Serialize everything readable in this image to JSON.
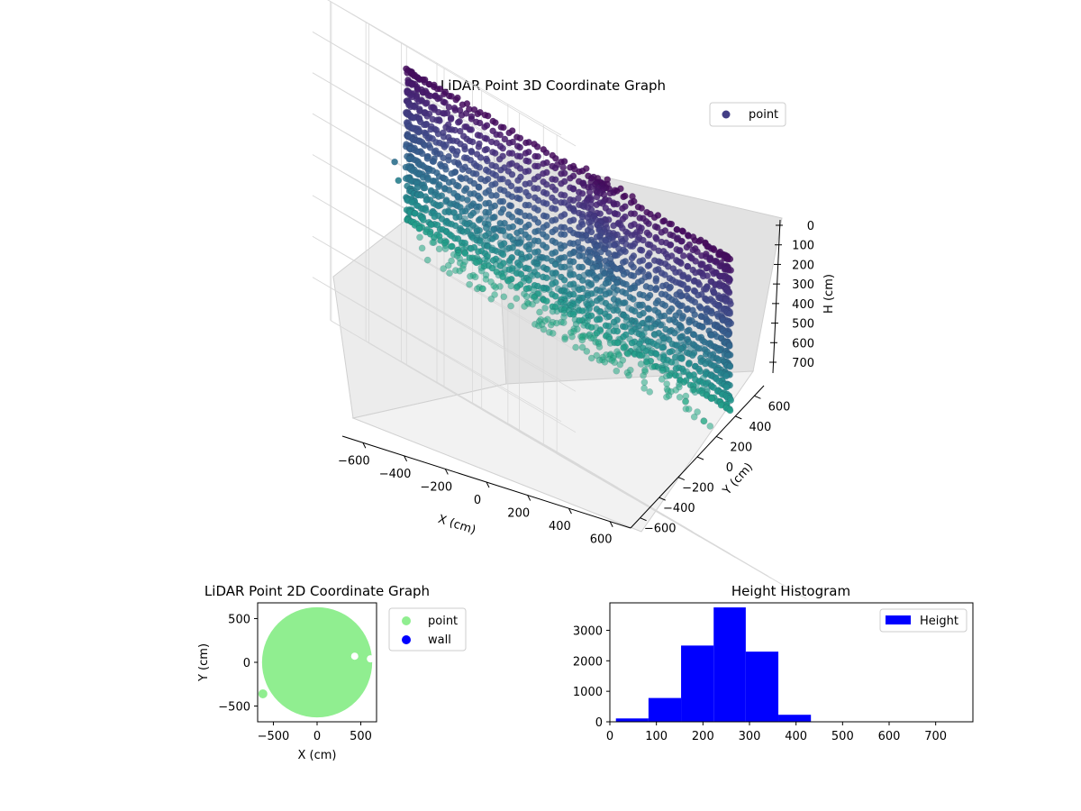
{
  "chart_data": [
    {
      "type": "scatter",
      "projection": "3d",
      "title": "LiDAR Point 3D Coordinate Graph",
      "xlabel": "X (cm)",
      "ylabel": "Y (cm)",
      "zlabel": "H (cm)",
      "xlim": [
        -700,
        700
      ],
      "ylim": [
        -700,
        700
      ],
      "zlim": [
        0,
        780
      ],
      "z_inverted": true,
      "xticks": [
        -600,
        -400,
        -200,
        0,
        200,
        400,
        600
      ],
      "yticks": [
        -600,
        -400,
        -200,
        0,
        200,
        400,
        600
      ],
      "zticks": [
        0,
        100,
        200,
        300,
        400,
        500,
        600,
        700
      ],
      "xtick_labels": [
        "−600",
        "−400",
        "−200",
        "0",
        "200",
        "400",
        "600"
      ],
      "ytick_labels": [
        "−600",
        "−400",
        "−200",
        "0",
        "200",
        "400",
        "600"
      ],
      "ztick_labels": [
        "0",
        "100",
        "200",
        "300",
        "400",
        "500",
        "600",
        "700"
      ],
      "colormap": "viridis",
      "grid": true,
      "legend": {
        "location": "upper right",
        "entries": [
          "point"
        ],
        "marker_color": "#433e85"
      },
      "series": [
        {
          "name": "point",
          "shape": "cylindrical wall of points",
          "wall_radius": 620,
          "height_range": [
            60,
            430
          ],
          "interior_cluster_center": [
            250,
            60
          ],
          "outliers": [
            [
              -640,
              300,
              340
            ],
            [
              -640,
              320,
              300
            ],
            [
              -660,
              180,
              330
            ]
          ]
        }
      ]
    },
    {
      "type": "scatter",
      "title": "LiDAR Point 2D Coordinate Graph",
      "xlabel": "X (cm)",
      "ylabel": "Y (cm)",
      "xlim": [
        -680,
        680
      ],
      "ylim": [
        -680,
        680
      ],
      "xticks": [
        -500,
        0,
        500
      ],
      "yticks": [
        -500,
        0,
        500
      ],
      "xtick_labels": [
        "−500",
        "0",
        "500"
      ],
      "ytick_labels": [
        "−500",
        "0",
        "500"
      ],
      "legend": {
        "location": "outside right",
        "entries": [
          {
            "name": "point",
            "color": "#90ee90"
          },
          {
            "name": "wall",
            "color": "#0000ff"
          }
        ]
      },
      "series": [
        {
          "name": "point",
          "color": "#90ee90",
          "shape": "filled disk",
          "center": [
            0,
            0
          ],
          "radius": 630,
          "gaps": [
            [
              430,
              70
            ],
            [
              610,
              40
            ]
          ],
          "outlier_blob": [
            -620,
            -360
          ]
        },
        {
          "name": "wall",
          "color": "#0000ff",
          "values": []
        }
      ]
    },
    {
      "type": "bar",
      "subtype": "histogram",
      "title": "Height Histogram",
      "xlim": [
        0,
        780
      ],
      "ylim": [
        0,
        3900
      ],
      "xticks": [
        0,
        100,
        200,
        300,
        400,
        500,
        600,
        700
      ],
      "yticks": [
        0,
        1000,
        2000,
        3000
      ],
      "xtick_labels": [
        "0",
        "100",
        "200",
        "300",
        "400",
        "500",
        "600",
        "700"
      ],
      "ytick_labels": [
        "0",
        "1000",
        "2000",
        "3000"
      ],
      "color": "#0000ff",
      "legend": {
        "location": "upper right",
        "entries": [
          "Height"
        ]
      },
      "bins": [
        {
          "start": 13,
          "end": 83,
          "count": 110
        },
        {
          "start": 83,
          "end": 153,
          "count": 780
        },
        {
          "start": 153,
          "end": 223,
          "count": 2500
        },
        {
          "start": 223,
          "end": 292,
          "count": 3750
        },
        {
          "start": 292,
          "end": 362,
          "count": 2300
        },
        {
          "start": 362,
          "end": 432,
          "count": 230
        },
        {
          "start": 432,
          "end": 502,
          "count": 0
        },
        {
          "start": 502,
          "end": 572,
          "count": 0
        },
        {
          "start": 572,
          "end": 641,
          "count": 0
        },
        {
          "start": 641,
          "end": 711,
          "count": 0
        }
      ]
    }
  ]
}
